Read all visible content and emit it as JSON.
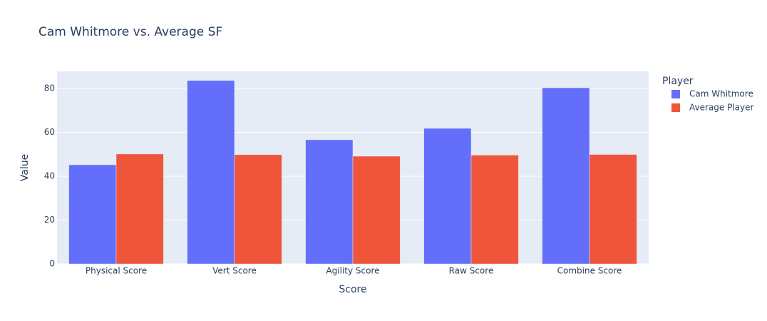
{
  "chart_data": {
    "type": "bar",
    "title": "Cam Whitmore vs. Average SF",
    "x_label": "Score",
    "y_label": "Value",
    "legend_title": "Player",
    "categories": [
      "Physical Score",
      "Vert Score",
      "Agility Score",
      "Raw Score",
      "Combine Score"
    ],
    "series": [
      {
        "name": "Cam Whitmore",
        "color": "#636efa",
        "values": [
          45.2,
          83.6,
          56.6,
          61.8,
          80.3
        ]
      },
      {
        "name": "Average Player",
        "color": "#ef553b",
        "values": [
          50.1,
          49.8,
          49.1,
          49.6,
          49.9
        ]
      }
    ],
    "ylim": [
      0,
      87.8
    ],
    "yticks": [
      0,
      20,
      40,
      60,
      80
    ],
    "grid": true
  }
}
